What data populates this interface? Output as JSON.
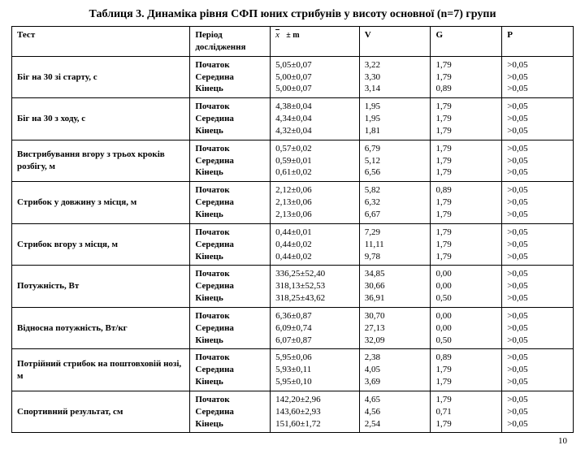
{
  "title": "Таблиця 3. Динаміка рівня СФП юних стрибунів у висоту основної (n=7) групи",
  "header": {
    "test": "Тест",
    "period": "Період дослідження",
    "xm_prefix": "x",
    "xm_suffix": "± m",
    "v": "V",
    "g": "G",
    "p": "P"
  },
  "period_labels": [
    "Початок",
    "Середина",
    "Кінець"
  ],
  "rows": [
    {
      "test": "Біг на 30 зі старту, с",
      "xm": [
        "5,05±0,07",
        "5,00±0,07",
        "5,00±0,07"
      ],
      "v": [
        "3,22",
        "3,30",
        "3,14"
      ],
      "g": [
        "1,79",
        "1,79",
        "0,89"
      ],
      "p": [
        ">0,05",
        ">0,05",
        ">0,05"
      ]
    },
    {
      "test": "Біг на 30 з ходу, с",
      "xm": [
        "4,38±0,04",
        "4,34±0,04",
        "4,32±0,04"
      ],
      "v": [
        "1,95",
        "1,95",
        "1,81"
      ],
      "g": [
        "1,79",
        "1,79",
        "1,79"
      ],
      "p": [
        ">0,05",
        ">0,05",
        ">0,05"
      ]
    },
    {
      "test": "Вистрибування вгору з трьох кроків розбігу, м",
      "xm": [
        "0,57±0,02",
        "0,59±0,01",
        "0,61±0,02"
      ],
      "v": [
        "6,79",
        "5,12",
        "6,56"
      ],
      "g": [
        "1,79",
        "1,79",
        "1,79"
      ],
      "p": [
        ">0,05",
        ">0,05",
        ">0,05"
      ]
    },
    {
      "test": "Стрибок у довжину з місця, м",
      "xm": [
        "2,12±0,06",
        "2,13±0,06",
        "2,13±0,06"
      ],
      "v": [
        "5,82",
        "6,32",
        "6,67"
      ],
      "g": [
        "0,89",
        "1,79",
        "1,79"
      ],
      "p": [
        ">0,05",
        ">0,05",
        ">0,05"
      ]
    },
    {
      "test": "Стрибок вгору з місця, м",
      "xm": [
        "0,44±0,01",
        "0,44±0,02",
        "0,44±0,02"
      ],
      "v": [
        "7,29",
        "11,11",
        "9,78"
      ],
      "g": [
        "1,79",
        "1,79",
        "1,79"
      ],
      "p": [
        ">0,05",
        ">0,05",
        ">0,05"
      ]
    },
    {
      "test": "Потужність, Вт",
      "xm": [
        "336,25±52,40",
        "318,13±52,53",
        "318,25±43,62"
      ],
      "v": [
        "34,85",
        "30,66",
        "36,91"
      ],
      "g": [
        "0,00",
        "0,00",
        "0,50"
      ],
      "p": [
        ">0,05",
        ">0,05",
        ">0,05"
      ]
    },
    {
      "test": "Відносна потужність, Вт/кг",
      "xm": [
        "6,36±0,87",
        "6,09±0,74",
        "6,07±0,87"
      ],
      "v": [
        "30,70",
        "27,13",
        "32,09"
      ],
      "g": [
        "0,00",
        "0,00",
        "0,50"
      ],
      "p": [
        ">0,05",
        ">0,05",
        ">0,05"
      ]
    },
    {
      "test": "Потрійний стрибок на поштовховій нозі, м",
      "xm": [
        "5,95±0,06",
        "5,93±0,11",
        "5,95±0,10"
      ],
      "v": [
        "2,38",
        "4,05",
        "3,69"
      ],
      "g": [
        "0,89",
        "1,79",
        "1,79"
      ],
      "p": [
        ">0,05",
        ">0,05",
        ">0,05"
      ]
    },
    {
      "test": "Спортивний результат, см",
      "xm": [
        "142,20±2,96",
        "143,60±2,93",
        "151,60±1,72"
      ],
      "v": [
        "4,65",
        "4,56",
        "2,54"
      ],
      "g": [
        "1,79",
        "0,71",
        "1,79"
      ],
      "p": [
        ">0,05",
        ">0,05",
        ">0,05"
      ]
    }
  ],
  "page_number": "10"
}
